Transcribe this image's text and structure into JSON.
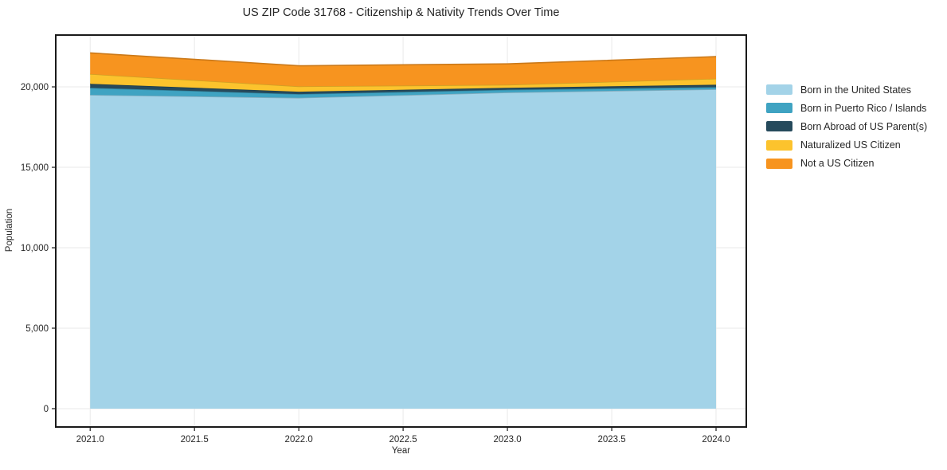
{
  "title": "US ZIP Code 31768 - Citizenship & Nativity Trends Over Time",
  "chart_data": {
    "type": "area",
    "stacked": true,
    "title": "US ZIP Code 31768 - Citizenship & Nativity Trends Over Time",
    "xlabel": "Year",
    "ylabel": "Population",
    "x": [
      2021,
      2022,
      2023,
      2024
    ],
    "series": [
      {
        "name": "Born in the United States",
        "color": "#A3D3E8",
        "values": [
          19500,
          19320,
          19650,
          19850
        ]
      },
      {
        "name": "Born in Puerto Rico / Islands",
        "color": "#3FA3C2",
        "values": [
          440,
          230,
          170,
          130
        ]
      },
      {
        "name": "Born Abroad of US Parent(s)",
        "color": "#264A5C",
        "values": [
          250,
          150,
          120,
          150
        ]
      },
      {
        "name": "Naturalized US Citizen",
        "color": "#FCC32D",
        "values": [
          610,
          330,
          190,
          380
        ]
      },
      {
        "name": "Not a US Citizen",
        "color": "#F7941F",
        "values": [
          1310,
          1280,
          1300,
          1370
        ]
      }
    ],
    "x_ticks": [
      2021.0,
      2021.5,
      2022.0,
      2022.5,
      2023.0,
      2023.5,
      2024.0
    ],
    "x_tick_labels": [
      "2021.0",
      "2021.5",
      "2022.0",
      "2022.5",
      "2023.0",
      "2023.5",
      "2024.0"
    ],
    "y_ticks": [
      0,
      5000,
      10000,
      15000,
      20000
    ],
    "y_tick_labels": [
      "0",
      "5,000",
      "10,000",
      "15,000",
      "20,000"
    ],
    "xlim": [
      2020.835,
      2024.145
    ],
    "ylim": [
      -1140,
      23220
    ],
    "grid": true,
    "legend_position": "right-outside",
    "colors": {
      "grid": "#e9e9e9",
      "spine": "#1a1a1a",
      "text": "#262626",
      "background": "#ffffff"
    }
  }
}
